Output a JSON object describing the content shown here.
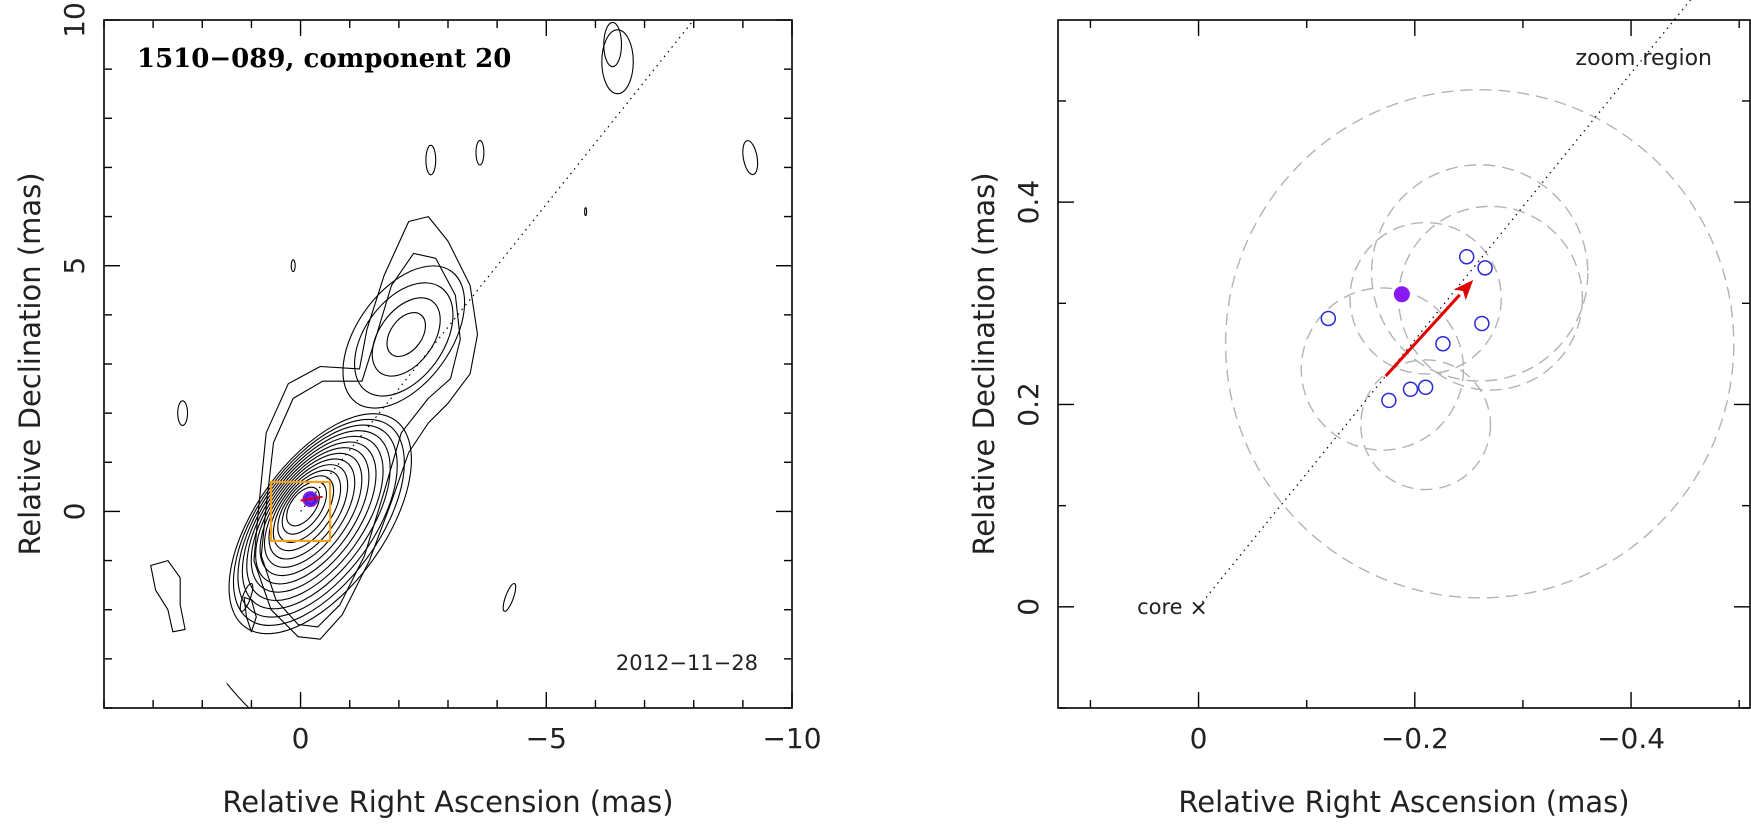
{
  "chart_data": [
    {
      "type": "contour",
      "title": "1510−089, component 20",
      "date_label": "2012−11−28",
      "xlabel": "Relative Right Ascension (mas)",
      "ylabel": "Relative Declination (mas)",
      "xlim": [
        4,
        -10
      ],
      "ylim": [
        -4,
        10
      ],
      "xticks": [
        0,
        -5,
        -10
      ],
      "xtick_labels": [
        "0",
        "−5",
        "−10"
      ],
      "yticks": [
        0,
        5,
        10
      ],
      "ytick_labels": [
        "0",
        "5",
        "10"
      ],
      "core_contour_levels": 14,
      "jet_axis_line": {
        "from": [
          0,
          0
        ],
        "to": [
          -8,
          10
        ]
      },
      "zoom_box": {
        "x": [
          0.6,
          -0.6
        ],
        "y": [
          -0.6,
          0.6
        ]
      }
    },
    {
      "type": "scatter",
      "title": "zoom region",
      "xlabel": "Relative Right Ascension (mas)",
      "ylabel": "Relative Declination (mas)",
      "xlim": [
        0.13,
        -0.51
      ],
      "ylim": [
        -0.1,
        0.58
      ],
      "xticks": [
        0,
        -0.2,
        -0.4
      ],
      "xtick_labels": [
        "0",
        "−0.2",
        "−0.4"
      ],
      "yticks": [
        0,
        0.2,
        0.4
      ],
      "ytick_labels": [
        "0",
        "0.2",
        "0.4"
      ],
      "core_label": "core",
      "core_marker": "×",
      "core_position": [
        0,
        0
      ],
      "fitted_positions": [
        [
          -0.12,
          0.285
        ],
        [
          -0.248,
          0.346
        ],
        [
          -0.265,
          0.335
        ],
        [
          -0.262,
          0.28
        ],
        [
          -0.226,
          0.26
        ],
        [
          -0.21,
          0.217
        ],
        [
          -0.196,
          0.215
        ],
        [
          -0.176,
          0.204
        ]
      ],
      "mean_position": [
        -0.188,
        0.309
      ],
      "motion_vector": {
        "from": [
          -0.173,
          0.228
        ],
        "to": [
          -0.254,
          0.323
        ]
      },
      "uncertainty_circles": [
        {
          "center": [
            -0.26,
            0.26
          ],
          "radius": 0.235
        },
        {
          "center": [
            -0.26,
            0.33
          ],
          "radius": 0.1
        },
        {
          "center": [
            -0.27,
            0.305
          ],
          "radius": 0.085
        },
        {
          "center": [
            -0.17,
            0.235
          ],
          "radius": 0.075
        },
        {
          "center": [
            -0.21,
            0.18
          ],
          "radius": 0.06
        },
        {
          "center": [
            -0.21,
            0.305
          ],
          "radius": 0.07
        }
      ],
      "jet_axis_line": {
        "from": [
          0,
          0
        ],
        "to": [
          -0.455,
          0.6
        ]
      }
    }
  ],
  "colors": {
    "axis": "#000000",
    "contour": "#000000",
    "circle_dash": "#b3b3b3",
    "open_point": "#2a2ad8",
    "mean_point": "#8a18f0",
    "arrow": "#e00000",
    "zoom_box": "#f4a020"
  }
}
